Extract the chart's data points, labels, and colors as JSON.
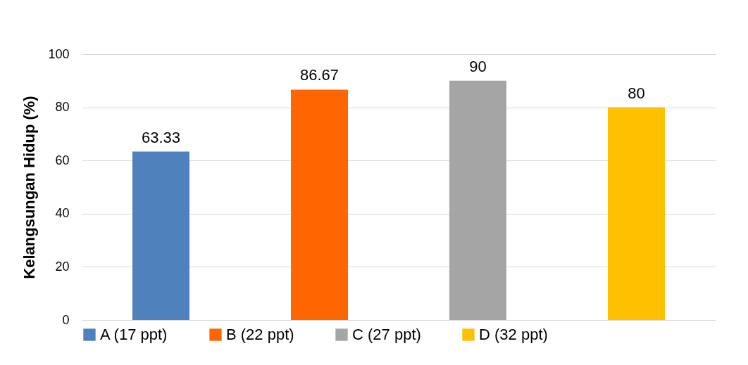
{
  "chart_data": {
    "type": "bar",
    "ylabel": "Kelangsungan Hidup (%)",
    "categories": [
      null,
      null,
      null,
      null
    ],
    "series": [
      {
        "name": "A (17 ppt)",
        "color": "#4f81bd",
        "values": [
          63.33,
          null,
          null,
          null
        ]
      },
      {
        "name": "B (22 ppt)",
        "color": "#ff6600",
        "values": [
          null,
          86.67,
          null,
          null
        ]
      },
      {
        "name": "C (27 ppt)",
        "color": "#a5a5a5",
        "values": [
          null,
          null,
          90,
          null
        ]
      },
      {
        "name": "D  (32 ppt)",
        "color": "#ffc000",
        "values": [
          null,
          null,
          null,
          80
        ]
      }
    ],
    "ylim": [
      0,
      100
    ],
    "yticks": [
      0,
      20,
      40,
      60,
      80,
      100
    ],
    "grid": "y",
    "legend": "bottom",
    "data_labels": true,
    "tick_labels": "y"
  }
}
